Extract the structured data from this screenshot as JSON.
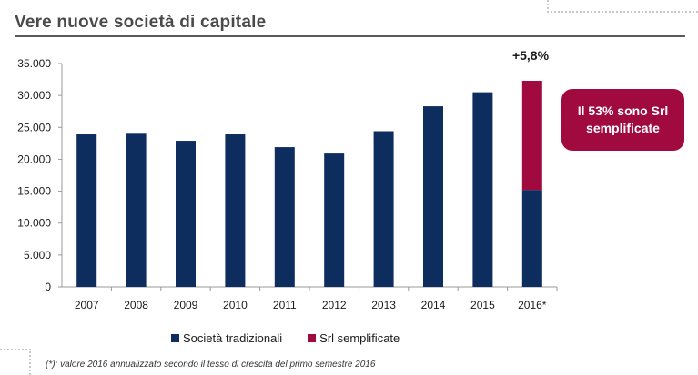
{
  "page": {
    "title": "Vere nuove società di capitale",
    "footnote": "(*): valore 2016 annualizzato secondo il tesso di crescita del primo semestre 2016"
  },
  "annotation": "+5,8%",
  "callout": "Il 53% sono Srl semplificate",
  "colors": {
    "tradizionali": "#0d2d5e",
    "semplificate": "#a00a3e",
    "callout": "#a00a3e"
  },
  "chart_data": {
    "type": "bar",
    "stacked": true,
    "categories": [
      "2007",
      "2008",
      "2009",
      "2010",
      "2011",
      "2012",
      "2013",
      "2014",
      "2015",
      "2016*"
    ],
    "series": [
      {
        "name": "Società tradizionali",
        "color": "#0d2d5e",
        "values": [
          23900,
          24000,
          22900,
          23900,
          21900,
          20900,
          24400,
          28300,
          30500,
          15200
        ]
      },
      {
        "name": "Srl semplificate",
        "color": "#a00a3e",
        "values": [
          0,
          0,
          0,
          0,
          0,
          0,
          0,
          0,
          0,
          17100
        ]
      }
    ],
    "ylim": [
      0,
      35000
    ],
    "yticks": [
      0,
      5000,
      10000,
      15000,
      20000,
      25000,
      30000,
      35000
    ],
    "ytick_labels": [
      "0",
      "5.000",
      "10.000",
      "15.000",
      "20.000",
      "25.000",
      "30.000",
      "35.000"
    ],
    "title": "",
    "xlabel": "",
    "ylabel": "",
    "grid": false,
    "legend_position": "bottom"
  }
}
